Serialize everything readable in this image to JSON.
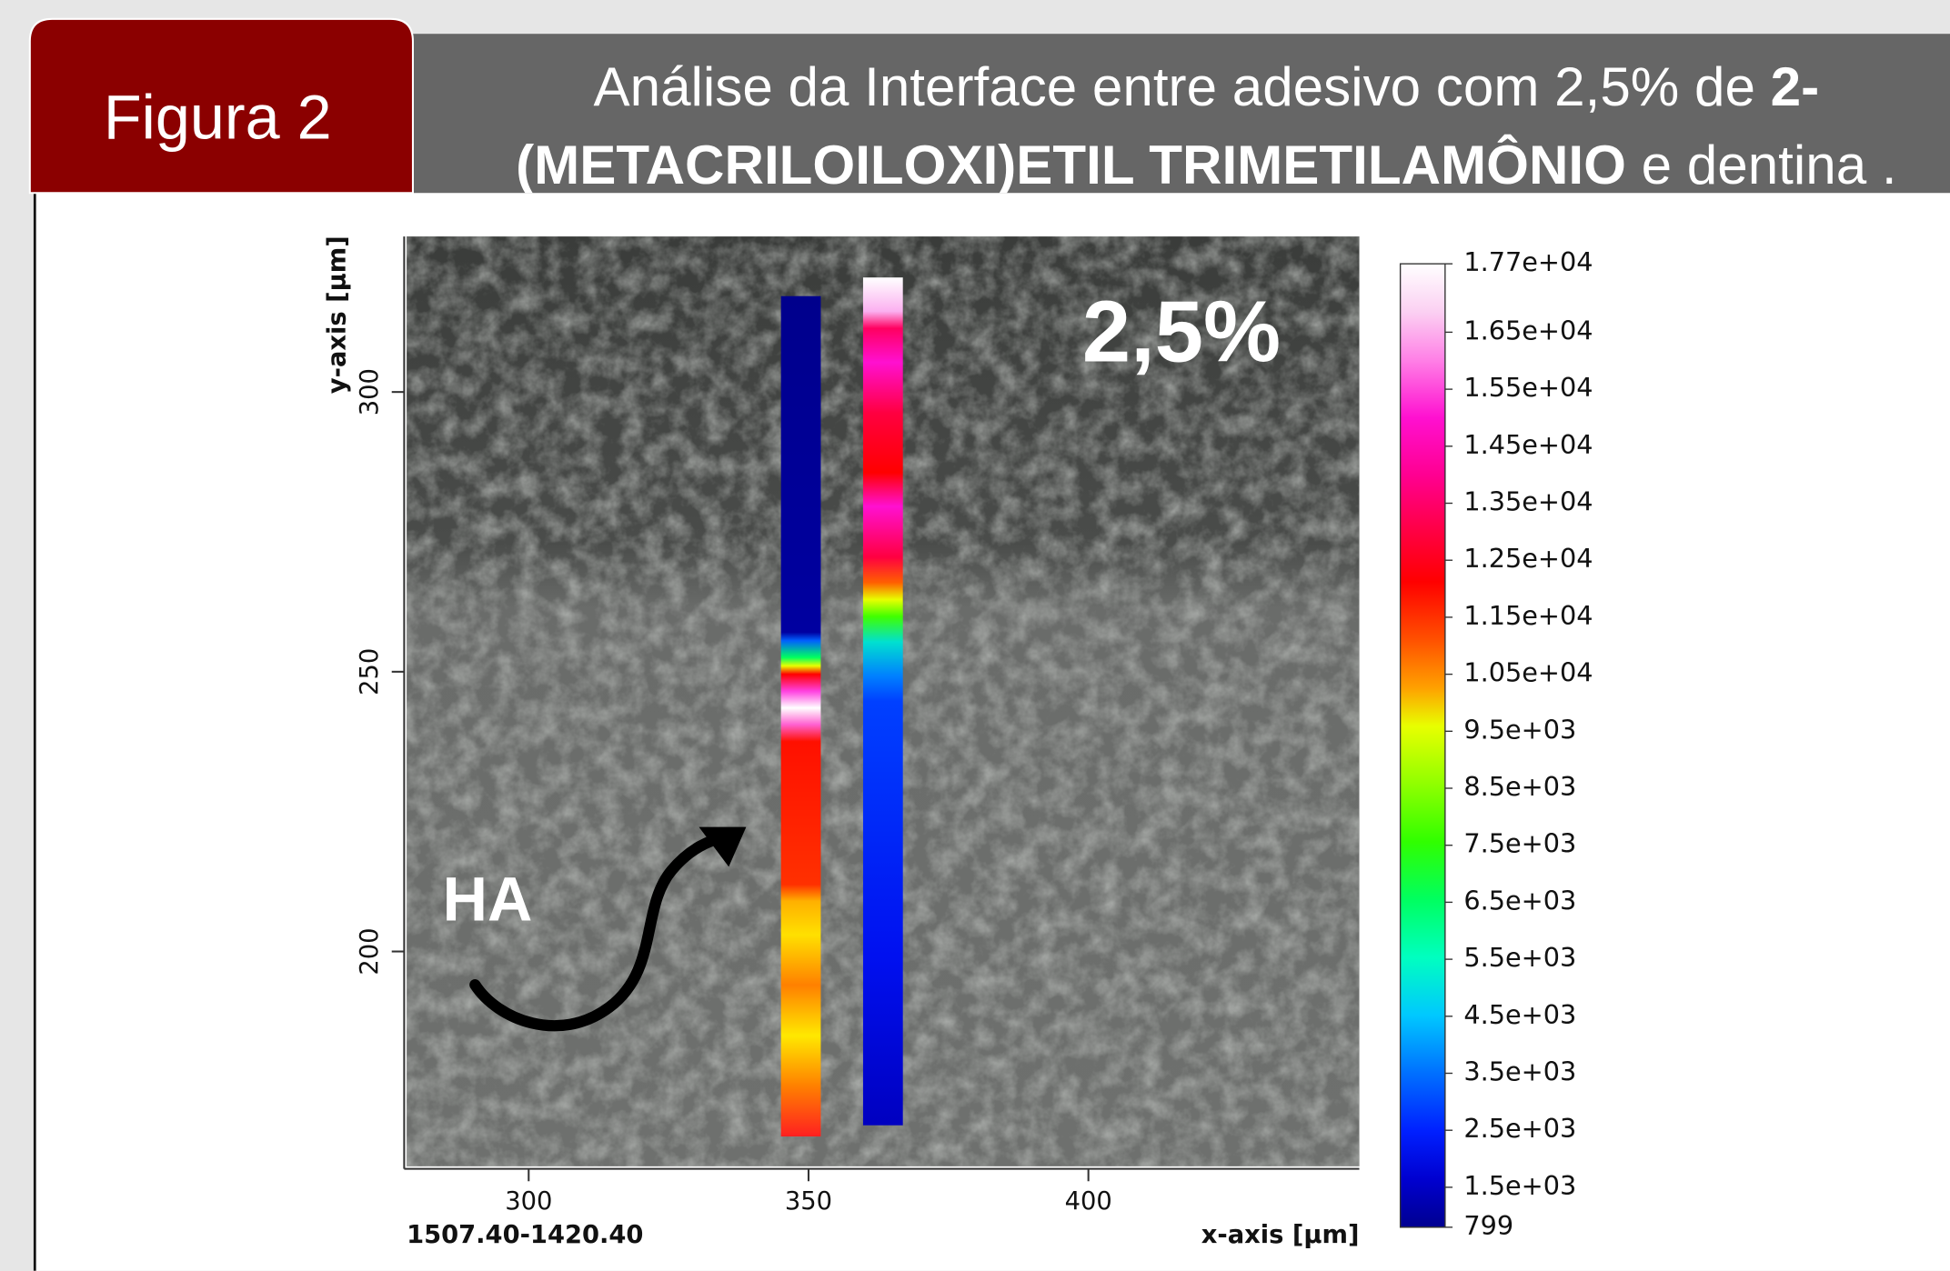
{
  "header": {
    "tab": "Figura 2",
    "title": {
      "line1": {
        "text": "Análise da Interface entre adesivo com 2,5% de ",
        "bold": "2-"
      },
      "line2": {
        "bold": "(METACRILOILOXI)ETIL TRIMETILAMÔNIO",
        "text": " e dentina ."
      }
    }
  },
  "figure": {
    "xlabel": "x-axis [µm]",
    "ylabel": "y-axis [µm]",
    "coordinates": "1507.40-1420.40",
    "xlim": [
      278.2,
      448.4
    ],
    "ylim": [
      161.6,
      327.8
    ],
    "xticks": [
      300,
      350,
      400
    ],
    "yticks": [
      200,
      250,
      300
    ],
    "annotations": {
      "concentration": "2,5%",
      "region": "HA"
    },
    "colorbar": {
      "lim": [
        799,
        17700
      ],
      "ticks": [
        {
          "value": 17700,
          "label": "1.77e+04"
        },
        {
          "value": 16500,
          "label": "1.65e+04"
        },
        {
          "value": 15500,
          "label": "1.55e+04"
        },
        {
          "value": 14500,
          "label": "1.45e+04"
        },
        {
          "value": 13500,
          "label": "1.35e+04"
        },
        {
          "value": 12500,
          "label": "1.25e+04"
        },
        {
          "value": 11500,
          "label": "1.15e+04"
        },
        {
          "value": 10500,
          "label": "1.05e+04"
        },
        {
          "value": 9500,
          "label": "9.5e+03"
        },
        {
          "value": 8500,
          "label": "8.5e+03"
        },
        {
          "value": 7500,
          "label": "7.5e+03"
        },
        {
          "value": 6500,
          "label": "6.5e+03"
        },
        {
          "value": 5500,
          "label": "5.5e+03"
        },
        {
          "value": 4500,
          "label": "4.5e+03"
        },
        {
          "value": 3500,
          "label": "3.5e+03"
        },
        {
          "value": 2500,
          "label": "2.5e+03"
        },
        {
          "value": 1500,
          "label": "1.5e+03"
        },
        799
      ]
    }
  }
}
